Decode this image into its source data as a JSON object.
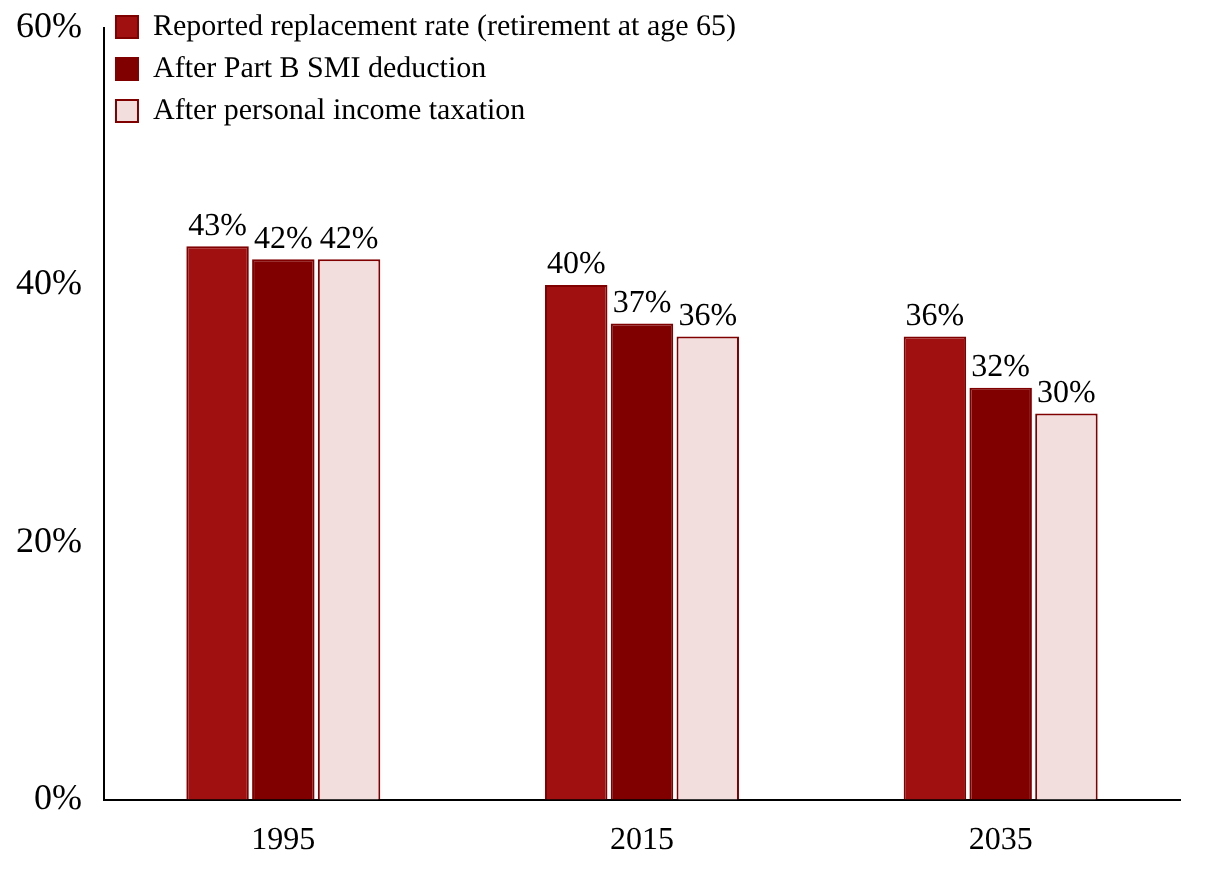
{
  "chart_data": {
    "type": "bar",
    "categories": [
      "1995",
      "2015",
      "2035"
    ],
    "series": [
      {
        "name": "Reported replacement rate (retirement at age 65)",
        "color": "#a01010",
        "values": [
          43,
          40,
          36
        ],
        "value_labels": [
          "43%",
          "40%",
          "36%"
        ]
      },
      {
        "name": "After Part B SMI deduction",
        "color": "#800000",
        "values": [
          42,
          37,
          32
        ],
        "value_labels": [
          "42%",
          "37%",
          "32%"
        ]
      },
      {
        "name": "After personal income taxation",
        "color": "#f3dede",
        "values": [
          42,
          36,
          30
        ],
        "value_labels": [
          "42%",
          "36%",
          "30%"
        ]
      }
    ],
    "ylim": [
      0,
      60
    ],
    "yticks": [
      {
        "value": 0,
        "label": "0%"
      },
      {
        "value": 20,
        "label": "20%"
      },
      {
        "value": 40,
        "label": "40%"
      },
      {
        "value": 60,
        "label": "60%"
      }
    ],
    "grid": false,
    "legend": "top left"
  }
}
